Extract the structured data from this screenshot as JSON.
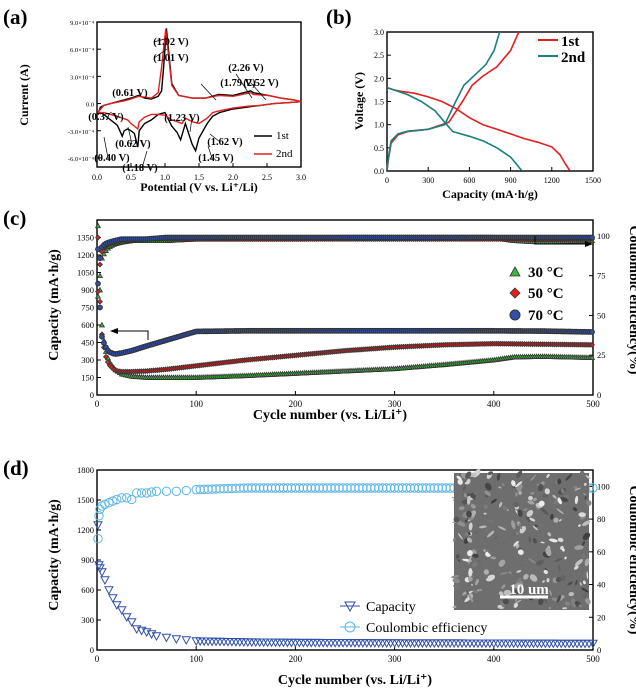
{
  "figure": "multi-panel electrochemistry figure",
  "chart_data": [
    {
      "panel_label": "(a)",
      "type": "line",
      "xlabel": "Potential (V vs. Li⁺/Li)",
      "ylabel": "Current (A)",
      "xlim": [
        0.0,
        3.0
      ],
      "ylim": [
        -0.0007,
        0.0009
      ],
      "xticks": [
        0.0,
        0.5,
        1.0,
        1.5,
        2.0,
        2.5,
        3.0
      ],
      "xtick_labels": [
        "0.0",
        "0.5",
        "1.0",
        "1.5",
        "2.0",
        "2.5",
        "3.0"
      ],
      "yticks": [
        -0.0006,
        -0.0003,
        0.0,
        0.0003,
        0.0006,
        0.0009
      ],
      "ytick_labels": [
        "-6.0×10⁻⁴",
        "-3.0×10⁻⁴",
        "0.0",
        "3.0×10⁻⁴",
        "6.0×10⁻⁴",
        "9.0×10⁻⁴"
      ],
      "legend": [
        "1st",
        "2nd"
      ],
      "legend_position": "bottom-right",
      "series": [
        {
          "name": "1st",
          "color": "#000000",
          "x": [
            0.01,
            0.05,
            0.1,
            0.2,
            0.3,
            0.37,
            0.4,
            0.45,
            0.5,
            0.55,
            0.6,
            0.62,
            0.7,
            0.8,
            0.9,
            1.0,
            1.1,
            1.18,
            1.23,
            1.3,
            1.4,
            1.45,
            1.5,
            1.62,
            1.7,
            1.8,
            2.0,
            2.2,
            2.4,
            2.6,
            2.8,
            3.0,
            2.9,
            2.7,
            2.52,
            2.3,
            2.26,
            2.0,
            1.79,
            1.6,
            1.4,
            1.2,
            1.1,
            1.02,
            0.98,
            0.95,
            0.9,
            0.8,
            0.7,
            0.61,
            0.5,
            0.4,
            0.3,
            0.2,
            0.1,
            0.05,
            0.01
          ],
          "y": [
            -0.00012,
            -0.0001,
            -0.00012,
            -0.00018,
            -0.00024,
            -0.00036,
            -0.0003,
            -0.00028,
            -0.0003,
            -0.00033,
            -0.00048,
            -0.0003,
            -0.00022,
            -0.00018,
            -0.00012,
            -0.0001,
            -0.00025,
            -0.00032,
            -0.0004,
            -0.00022,
            -0.00045,
            -0.00052,
            -0.00038,
            -0.00022,
            -0.00014,
            -0.0001,
            -6e-05,
            -4e-05,
            -2e-05,
            0.0,
            1e-05,
            2e-05,
            4e-05,
            6e-05,
            9e-05,
            0.00012,
            0.00014,
            9e-05,
            0.0001,
            6e-05,
            6e-05,
            9e-05,
            0.00022,
            0.00083,
            0.0004,
            0.00014,
            8e-05,
            5e-05,
            6e-05,
            9e-05,
            6e-05,
            4e-05,
            2e-05,
            0.0,
            -2e-05,
            -4e-05,
            -0.00012
          ]
        },
        {
          "name": "2nd",
          "color": "#e41f1f",
          "x": [
            0.01,
            0.1,
            0.2,
            0.3,
            0.37,
            0.45,
            0.5,
            0.6,
            0.62,
            0.7,
            0.8,
            0.9,
            1.0,
            1.1,
            1.18,
            1.25,
            1.3,
            1.4,
            1.5,
            1.62,
            1.7,
            1.8,
            2.0,
            2.2,
            2.4,
            2.6,
            2.8,
            3.0,
            2.9,
            2.7,
            2.52,
            2.3,
            2.26,
            2.0,
            1.79,
            1.6,
            1.4,
            1.2,
            1.1,
            1.01,
            0.95,
            0.9,
            0.8,
            0.61,
            0.5,
            0.4,
            0.2,
            0.1,
            0.01
          ],
          "y": [
            -0.0001,
            -0.0001,
            -0.00012,
            -0.00014,
            -0.00016,
            -0.00018,
            -0.00022,
            -0.00028,
            -0.0002,
            -0.00015,
            -0.00012,
            -0.00012,
            -0.00013,
            -0.00018,
            -0.0002,
            -0.00022,
            -0.00016,
            -0.0002,
            -0.00022,
            -0.00016,
            -0.0001,
            -8e-05,
            -5e-05,
            -3e-05,
            -2e-05,
            0.0,
            1e-05,
            2e-05,
            4e-05,
            6e-05,
            9e-05,
            0.0001,
            0.00012,
            8e-05,
            9e-05,
            6e-05,
            6e-05,
            9e-05,
            0.0002,
            0.00082,
            0.0004,
            0.00012,
            6e-05,
            8e-05,
            5e-05,
            3e-05,
            0.0,
            -2e-05,
            -0.0001
          ]
        }
      ],
      "annotations": [
        "(1.02 V)",
        "(1.01 V)",
        "(0.61 V)",
        "(1.79 V)",
        "(2.26 V)",
        "(2.52 V)",
        "(0.37 V)",
        "(1.23 V)",
        "(0.62 V)",
        "(1.62 V)",
        "(0.40 V)",
        "(1.18 V)",
        "(1.45 V)"
      ]
    },
    {
      "panel_label": "(b)",
      "type": "line",
      "xlabel": "Capacity (mA·h/g)",
      "ylabel": "Voltage (V)",
      "xlim": [
        0,
        1500
      ],
      "ylim": [
        0.0,
        3.0
      ],
      "xticks": [
        0,
        300,
        600,
        900,
        1200,
        1500
      ],
      "yticks": [
        0.0,
        0.5,
        1.0,
        1.5,
        2.0,
        2.5,
        3.0
      ],
      "legend": [
        "1st",
        "2nd"
      ],
      "legend_position": "top-right",
      "series": [
        {
          "name": "1st discharge",
          "color": "#e41f1f",
          "x": [
            0,
            50,
            100,
            200,
            300,
            400,
            500,
            600,
            700,
            800,
            900,
            1000,
            1100,
            1200,
            1260,
            1300,
            1330
          ],
          "y": [
            1.8,
            1.75,
            1.72,
            1.68,
            1.6,
            1.5,
            1.35,
            1.15,
            1.0,
            0.9,
            0.8,
            0.7,
            0.62,
            0.52,
            0.35,
            0.15,
            0.01
          ]
        },
        {
          "name": "1st charge",
          "color": "#e41f1f",
          "x": [
            0,
            10,
            30,
            80,
            150,
            300,
            450,
            550,
            620,
            700,
            800,
            900,
            960
          ],
          "y": [
            0.01,
            0.25,
            0.6,
            0.78,
            0.85,
            0.9,
            1.05,
            1.5,
            1.85,
            2.05,
            2.25,
            2.6,
            3.0
          ]
        },
        {
          "name": "2nd discharge",
          "color": "#1a7f7f",
          "x": [
            0,
            50,
            150,
            250,
            350,
            420,
            480,
            600,
            700,
            800,
            900,
            950,
            980
          ],
          "y": [
            1.8,
            1.75,
            1.65,
            1.5,
            1.3,
            1.05,
            0.85,
            0.75,
            0.65,
            0.5,
            0.3,
            0.12,
            0.01
          ]
        },
        {
          "name": "2nd charge",
          "color": "#1a7f7f",
          "x": [
            0,
            10,
            30,
            80,
            150,
            300,
            420,
            500,
            560,
            650,
            720,
            780,
            820
          ],
          "y": [
            0.01,
            0.3,
            0.65,
            0.8,
            0.86,
            0.9,
            1.0,
            1.5,
            1.85,
            2.1,
            2.3,
            2.6,
            3.0
          ]
        }
      ]
    },
    {
      "panel_label": "(c)",
      "type": "scatter",
      "xlabel": "Cycle number  (vs. Li/Li⁺)",
      "ylabel": "Capacity (mA·h/g)",
      "y2label": "Coulombic efficiency(%)",
      "xlim": [
        0,
        500
      ],
      "ylim": [
        0,
        1500
      ],
      "y2lim": [
        0,
        110
      ],
      "xticks": [
        0,
        100,
        200,
        300,
        400,
        500
      ],
      "yticks": [
        0,
        150,
        300,
        450,
        600,
        750,
        900,
        1050,
        1200,
        1350
      ],
      "y2ticks": [
        0,
        25,
        50,
        75,
        100
      ],
      "legend_position": "right",
      "series": [
        {
          "name": "30 °C",
          "color": "#3cb43c",
          "marker": "triangle",
          "x": [
            1,
            3,
            5,
            8,
            12,
            18,
            25,
            35,
            50,
            70,
            100,
            150,
            200,
            250,
            300,
            350,
            400,
            420,
            450,
            500
          ],
          "capacity": [
            1450,
            900,
            600,
            400,
            290,
            220,
            180,
            160,
            150,
            150,
            150,
            165,
            185,
            205,
            225,
            260,
            300,
            325,
            330,
            320
          ],
          "ce": [
            62,
            75,
            86,
            90,
            93,
            95,
            96,
            97,
            97,
            97,
            98,
            98,
            98,
            99,
            99,
            99,
            99,
            97,
            96,
            97
          ]
        },
        {
          "name": "50 °C",
          "color": "#e41f1f",
          "marker": "diamond",
          "x": [
            1,
            3,
            5,
            8,
            12,
            18,
            25,
            35,
            50,
            70,
            100,
            150,
            200,
            250,
            300,
            350,
            400,
            450,
            500
          ],
          "capacity": [
            1350,
            800,
            520,
            350,
            260,
            210,
            200,
            200,
            205,
            220,
            250,
            300,
            340,
            380,
            410,
            430,
            440,
            435,
            430
          ],
          "ce": [
            65,
            82,
            90,
            94,
            95,
            96,
            97,
            97,
            98,
            98,
            98,
            98,
            98,
            98,
            98,
            98,
            98,
            98,
            98
          ]
        },
        {
          "name": "70 °C",
          "color": "#2f4fa8",
          "marker": "circle",
          "x": [
            1,
            3,
            5,
            8,
            12,
            18,
            25,
            35,
            50,
            70,
            100,
            150,
            200,
            250,
            300,
            350,
            400,
            450,
            500
          ],
          "capacity": [
            1250,
            750,
            500,
            420,
            370,
            350,
            360,
            380,
            420,
            470,
            545,
            550,
            550,
            550,
            550,
            550,
            550,
            548,
            540
          ],
          "ce": [
            70,
            86,
            93,
            95,
            96,
            97,
            98,
            98,
            98,
            99,
            99,
            99,
            99,
            99,
            99,
            99,
            99,
            99,
            99
          ]
        }
      ]
    },
    {
      "panel_label": "(d)",
      "type": "scatter",
      "xlabel": "Cycle number  (vs. Li/Li⁺)",
      "ylabel": "Capacity (mA·h/g)",
      "y2label": "Coulombic efficiency(%)",
      "xlim": [
        0,
        500
      ],
      "ylim": [
        0,
        1800
      ],
      "y2lim": [
        0,
        110
      ],
      "xticks": [
        0,
        100,
        200,
        300,
        400,
        500
      ],
      "yticks": [
        0,
        300,
        600,
        900,
        1200,
        1500,
        1800
      ],
      "y2ticks": [
        0,
        20,
        40,
        60,
        80,
        100
      ],
      "legend_position": "bottom-center",
      "inset_scale_bar": "10 um",
      "series": [
        {
          "name": "Capacity",
          "color": "#2f4fa8",
          "marker": "triangle-down",
          "x": [
            1,
            2,
            3,
            5,
            8,
            12,
            16,
            20,
            25,
            30,
            35,
            40,
            50,
            60,
            80,
            100,
            150,
            200,
            300,
            400,
            500
          ],
          "values": [
            1250,
            850,
            820,
            780,
            700,
            600,
            520,
            450,
            400,
            330,
            280,
            210,
            180,
            140,
            110,
            90,
            80,
            75,
            70,
            68,
            65
          ]
        },
        {
          "name": "Coulombic efficiency",
          "color": "#5ab4e6",
          "marker": "circle",
          "x": [
            1,
            2,
            3,
            5,
            8,
            12,
            16,
            20,
            25,
            30,
            35,
            40,
            50,
            60,
            80,
            100,
            150,
            200,
            300,
            400,
            500
          ],
          "values": [
            68,
            82,
            86,
            88,
            89,
            90,
            91,
            92,
            93,
            93,
            92,
            96,
            96,
            97,
            97,
            98,
            99,
            99,
            99,
            99,
            99
          ]
        }
      ]
    }
  ]
}
